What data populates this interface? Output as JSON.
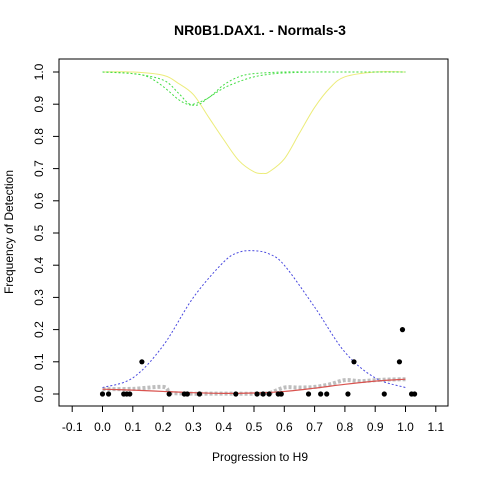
{
  "chart_data": {
    "type": "scatter",
    "title": "NR0B1.DAX1. - Normals-3",
    "xlabel": "Progression to H9",
    "ylabel": "Frequency of Detection",
    "xlim": [
      -0.1,
      1.1
    ],
    "ylim": [
      0.0,
      1.0
    ],
    "x_ticks": [
      "-0.1",
      "0.0",
      "0.1",
      "0.2",
      "0.3",
      "0.4",
      "0.5",
      "0.6",
      "0.7",
      "0.8",
      "0.9",
      "1.0",
      "1.1"
    ],
    "y_ticks": [
      "0.0",
      "0.1",
      "0.2",
      "0.3",
      "0.4",
      "0.5",
      "0.6",
      "0.7",
      "0.8",
      "0.9",
      "1.0"
    ],
    "grid": false,
    "colors": {
      "points": "#000000",
      "smooth": "#bebebe",
      "fit": "#d9534f",
      "blue_curve": "#4a4adf",
      "green_curve": "#44dd44",
      "yellow_curve": "#ecec7a"
    },
    "series": [
      {
        "kind": "points",
        "x": [
          0.0,
          0.02,
          0.07,
          0.08,
          0.09,
          0.13,
          0.22,
          0.27,
          0.28,
          0.32,
          0.44,
          0.51,
          0.53,
          0.55,
          0.58,
          0.59,
          0.68,
          0.72,
          0.74,
          0.81,
          0.83,
          0.93,
          0.98,
          0.99,
          1.02,
          1.03
        ],
        "y": [
          0.0,
          0.0,
          0.0,
          0.0,
          0.0,
          0.1,
          0.0,
          0.0,
          0.0,
          0.0,
          0.0,
          0.0,
          0.0,
          0.0,
          0.0,
          0.0,
          0.0,
          0.0,
          0.0,
          0.0,
          0.1,
          0.0,
          0.1,
          0.2,
          0.0,
          0.0
        ]
      },
      {
        "kind": "smooth",
        "x": [
          0.0,
          0.1,
          0.2,
          0.22,
          0.25,
          0.3,
          0.35,
          0.4,
          0.45,
          0.5,
          0.55,
          0.6,
          0.65,
          0.7,
          0.75,
          0.8,
          0.85,
          0.9,
          0.95,
          1.0
        ],
        "y": [
          0.015,
          0.016,
          0.022,
          0.005,
          0.002,
          0.001,
          0.001,
          0.001,
          0.001,
          0.001,
          0.003,
          0.02,
          0.02,
          0.022,
          0.03,
          0.043,
          0.04,
          0.043,
          0.045,
          0.046
        ]
      },
      {
        "kind": "fit",
        "x": [
          0.0,
          0.1,
          0.2,
          0.3,
          0.4,
          0.5,
          0.6,
          0.7,
          0.8,
          0.9,
          1.0
        ],
        "y": [
          0.015,
          0.012,
          0.008,
          0.004,
          0.002,
          0.003,
          0.008,
          0.018,
          0.03,
          0.04,
          0.046
        ]
      },
      {
        "kind": "blue_curve",
        "x": [
          0.0,
          0.1,
          0.2,
          0.3,
          0.4,
          0.45,
          0.5,
          0.55,
          0.6,
          0.7,
          0.8,
          0.9,
          1.0
        ],
        "y": [
          0.02,
          0.05,
          0.15,
          0.3,
          0.41,
          0.44,
          0.445,
          0.435,
          0.4,
          0.27,
          0.13,
          0.05,
          0.02
        ]
      },
      {
        "kind": "green_curve",
        "x": [
          0.0,
          0.1,
          0.15,
          0.2,
          0.25,
          0.28,
          0.3,
          0.35,
          0.4,
          0.45,
          0.5,
          0.6,
          0.7,
          0.8,
          0.9,
          1.0
        ],
        "y": [
          1.0,
          0.995,
          0.985,
          0.955,
          0.915,
          0.9,
          0.9,
          0.92,
          0.96,
          0.985,
          0.995,
          1.0,
          1.0,
          1.0,
          1.0,
          1.0
        ]
      },
      {
        "kind": "green_curve",
        "x": [
          0.0,
          0.1,
          0.2,
          0.25,
          0.28,
          0.3,
          0.32,
          0.35,
          0.4,
          0.45,
          0.5,
          0.55,
          0.6,
          0.7,
          0.8,
          1.0
        ],
        "y": [
          1.0,
          0.995,
          0.975,
          0.935,
          0.905,
          0.897,
          0.9,
          0.92,
          0.95,
          0.97,
          0.985,
          0.993,
          0.997,
          1.0,
          1.0,
          1.0
        ]
      },
      {
        "kind": "yellow_curve",
        "x": [
          0.0,
          0.1,
          0.2,
          0.25,
          0.3,
          0.35,
          0.4,
          0.45,
          0.5,
          0.53,
          0.55,
          0.6,
          0.65,
          0.7,
          0.75,
          0.8,
          0.9,
          1.0
        ],
        "y": [
          1.0,
          1.0,
          0.99,
          0.965,
          0.93,
          0.86,
          0.79,
          0.725,
          0.69,
          0.685,
          0.69,
          0.73,
          0.81,
          0.89,
          0.95,
          0.985,
          1.0,
          1.0
        ]
      }
    ]
  }
}
